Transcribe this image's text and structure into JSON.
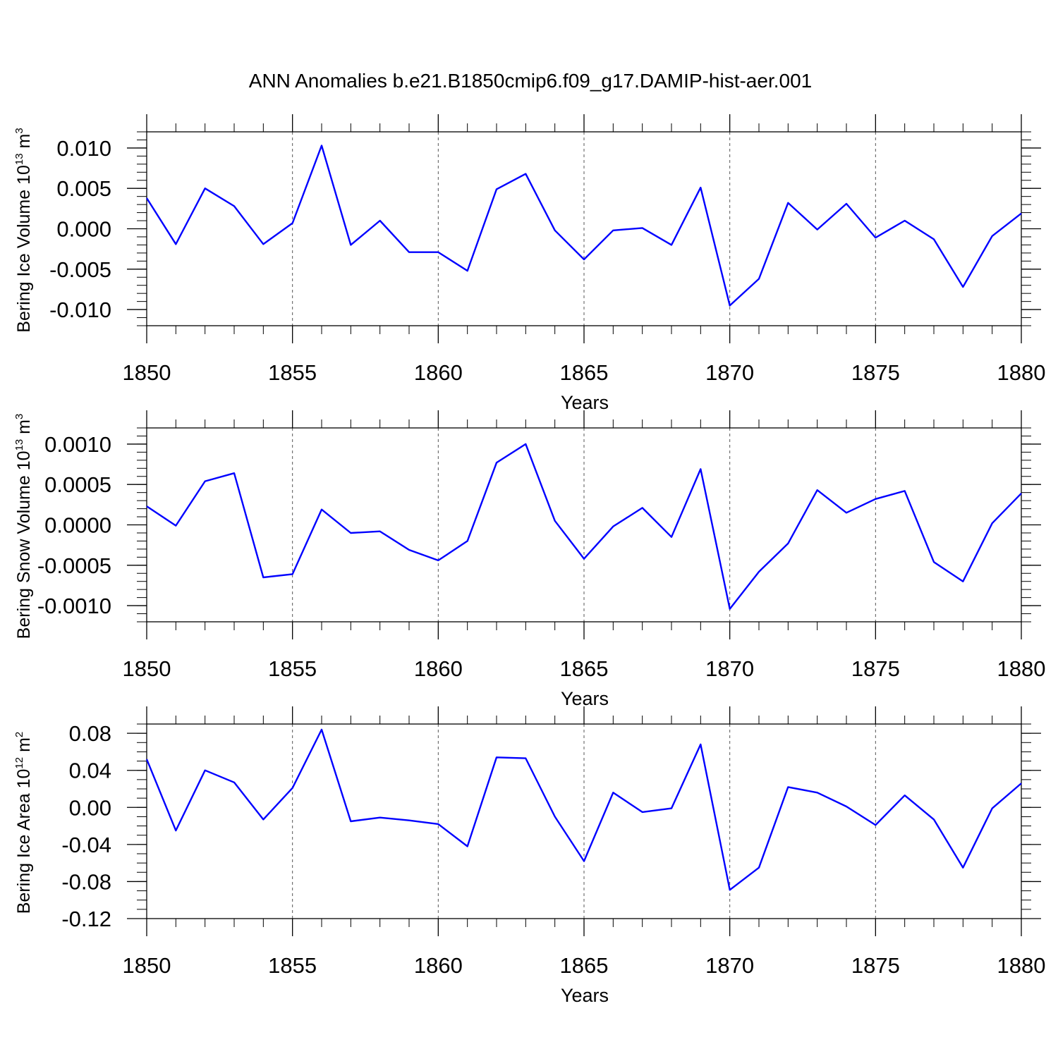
{
  "title": "ANN Anomalies b.e21.B1850cmip6.f09_g17.DAMIP-hist-aer.001",
  "colors": {
    "series": "#0000ff",
    "axis": "#000000",
    "grid": "#555555"
  },
  "chart_data": [
    {
      "type": "line",
      "title": "ANN Anomalies b.e21.B1850cmip6.f09_g17.DAMIP-hist-aer.001",
      "ylabel": {
        "text": "Bering Ice Volume 10",
        "sup": "13",
        "unit": " m",
        "unit_sup": "3"
      },
      "xlabel": "Years",
      "xlim": [
        1850,
        1880
      ],
      "ylim": [
        -0.012,
        0.012
      ],
      "xticks": [
        1850,
        1855,
        1860,
        1865,
        1870,
        1875,
        1880
      ],
      "xtick_labels": [
        "1850",
        "1855",
        "1860",
        "1865",
        "1870",
        "1875",
        "1880"
      ],
      "yticks": [
        -0.01,
        -0.005,
        0.0,
        0.005,
        0.01
      ],
      "ytick_labels": [
        "-0.010",
        "-0.005",
        "0.000",
        "0.005",
        "0.010"
      ],
      "y_minor_step": 0.001,
      "grid": "vertical dashed at major x ticks",
      "x": [
        1850,
        1851,
        1852,
        1853,
        1854,
        1855,
        1856,
        1857,
        1858,
        1859,
        1860,
        1861,
        1862,
        1863,
        1864,
        1865,
        1866,
        1867,
        1868,
        1869,
        1870,
        1871,
        1872,
        1873,
        1874,
        1875,
        1876,
        1877,
        1878,
        1879,
        1880
      ],
      "values": [
        0.0038,
        -0.0019,
        0.005,
        0.0028,
        -0.0019,
        0.0007,
        0.0103,
        -0.002,
        0.001,
        -0.0029,
        -0.0029,
        -0.0052,
        0.0049,
        0.0068,
        -0.0002,
        -0.0038,
        -0.0002,
        0.0001,
        -0.002,
        0.0051,
        -0.0095,
        -0.0062,
        0.0032,
        -0.0001,
        0.0031,
        -0.0011,
        0.001,
        -0.0013,
        -0.0072,
        -0.0009,
        0.0019
      ]
    },
    {
      "type": "line",
      "ylabel": {
        "text": "Bering Snow Volume 10",
        "sup": "13",
        "unit": " m",
        "unit_sup": "3"
      },
      "xlabel": "Years",
      "xlim": [
        1850,
        1880
      ],
      "ylim": [
        -0.0012,
        0.0012
      ],
      "xticks": [
        1850,
        1855,
        1860,
        1865,
        1870,
        1875,
        1880
      ],
      "xtick_labels": [
        "1850",
        "1855",
        "1860",
        "1865",
        "1870",
        "1875",
        "1880"
      ],
      "yticks": [
        -0.001,
        -0.0005,
        0.0,
        0.0005,
        0.001
      ],
      "ytick_labels": [
        "-0.0010",
        "-0.0005",
        "0.0000",
        "0.0005",
        "0.0010"
      ],
      "y_minor_step": 0.0001,
      "grid": "vertical dashed at major x ticks",
      "x": [
        1850,
        1851,
        1852,
        1853,
        1854,
        1855,
        1856,
        1857,
        1858,
        1859,
        1860,
        1861,
        1862,
        1863,
        1864,
        1865,
        1866,
        1867,
        1868,
        1869,
        1870,
        1871,
        1872,
        1873,
        1874,
        1875,
        1876,
        1877,
        1878,
        1879,
        1880
      ],
      "values": [
        0.00023,
        -1e-05,
        0.00054,
        0.00064,
        -0.00065,
        -0.00061,
        0.00019,
        -0.0001,
        -8e-05,
        -0.00031,
        -0.00044,
        -0.0002,
        0.00077,
        0.001,
        5e-05,
        -0.00042,
        -2e-05,
        0.00021,
        -0.00015,
        0.00069,
        -0.00104,
        -0.00058,
        -0.00023,
        0.00043,
        0.00015,
        0.00032,
        0.00042,
        -0.00046,
        -0.0007,
        2e-05,
        0.00039
      ]
    },
    {
      "type": "line",
      "ylabel": {
        "text": "Bering Ice Area 10",
        "sup": "12",
        "unit": " m",
        "unit_sup": "2"
      },
      "xlabel": "Years",
      "xlim": [
        1850,
        1880
      ],
      "ylim": [
        -0.12,
        0.09
      ],
      "xticks": [
        1850,
        1855,
        1860,
        1865,
        1870,
        1875,
        1880
      ],
      "xtick_labels": [
        "1850",
        "1855",
        "1860",
        "1865",
        "1870",
        "1875",
        "1880"
      ],
      "yticks": [
        -0.12,
        -0.08,
        -0.04,
        0.0,
        0.04,
        0.08
      ],
      "ytick_labels": [
        "-0.12",
        "-0.08",
        "-0.04",
        "0.00",
        "0.04",
        "0.08"
      ],
      "y_minor_step": 0.01,
      "grid": "vertical dashed at major x ticks",
      "x": [
        1850,
        1851,
        1852,
        1853,
        1854,
        1855,
        1856,
        1857,
        1858,
        1859,
        1860,
        1861,
        1862,
        1863,
        1864,
        1865,
        1866,
        1867,
        1868,
        1869,
        1870,
        1871,
        1872,
        1873,
        1874,
        1875,
        1876,
        1877,
        1878,
        1879,
        1880
      ],
      "values": [
        0.052,
        -0.025,
        0.04,
        0.027,
        -0.013,
        0.021,
        0.084,
        -0.015,
        -0.011,
        -0.014,
        -0.018,
        -0.042,
        0.054,
        0.053,
        -0.01,
        -0.058,
        0.016,
        -0.005,
        -0.001,
        0.068,
        -0.089,
        -0.065,
        0.022,
        0.016,
        0.001,
        -0.019,
        0.013,
        -0.013,
        -0.065,
        -0.001,
        0.026
      ]
    }
  ]
}
